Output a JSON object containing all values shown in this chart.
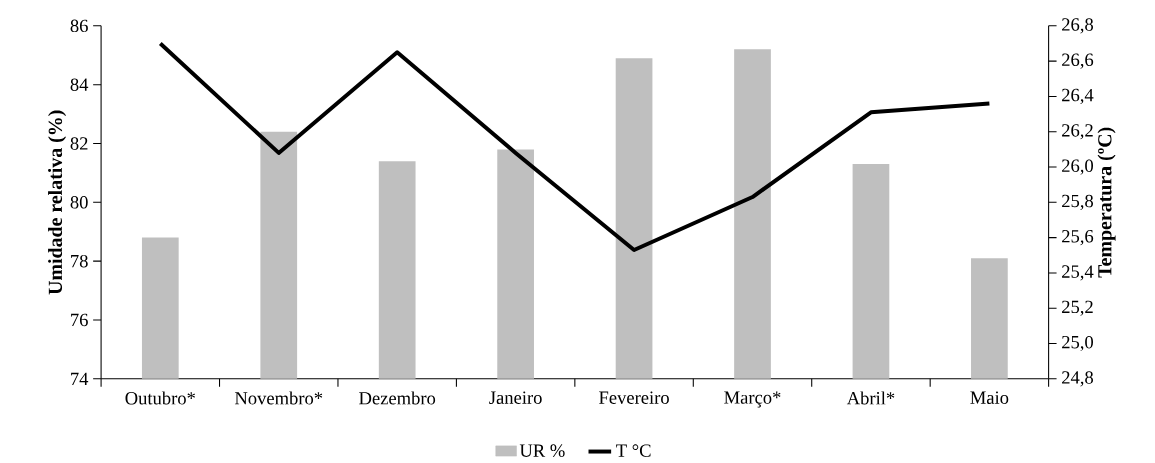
{
  "chart_data": {
    "type": "bar",
    "ylabel": "Umidade relativa (%)",
    "y2label": "Temperatura (ºC)",
    "categories": [
      "Outubro*",
      "Novembro*",
      "Dezembro",
      "Janeiro",
      "Fevereiro",
      "Março*",
      "Abril*",
      "Maio"
    ],
    "series": [
      {
        "name": "UR %",
        "color": "#bfbfbf",
        "values": [
          78.8,
          82.4,
          81.4,
          81.8,
          84.9,
          85.2,
          81.3,
          78.1
        ]
      },
      {
        "name": "T °C",
        "type": "line",
        "axis": "y2",
        "color": "#000000",
        "values": [
          26.7,
          26.08,
          26.65,
          26.08,
          25.53,
          25.83,
          26.31,
          26.36
        ]
      }
    ],
    "ylim": [
      74,
      86
    ],
    "yticks": [
      74,
      76,
      78,
      80,
      82,
      84,
      86
    ],
    "y2lim": [
      24.8,
      26.8
    ],
    "y2ticks": [
      {
        "value": 24.8,
        "label": "24,8"
      },
      {
        "value": 25.0,
        "label": "25,0"
      },
      {
        "value": 25.2,
        "label": "25,2"
      },
      {
        "value": 25.4,
        "label": "25,4"
      },
      {
        "value": 25.6,
        "label": "25,6"
      },
      {
        "value": 25.8,
        "label": "25,8"
      },
      {
        "value": 26.0,
        "label": "26,0"
      },
      {
        "value": 26.2,
        "label": "26,2"
      },
      {
        "value": 26.4,
        "label": "26,4"
      },
      {
        "value": 26.6,
        "label": "26,6"
      },
      {
        "value": 26.8,
        "label": "26,8"
      }
    ],
    "legend": "bottom",
    "grid": false,
    "marker": "none",
    "line_style": "solid"
  }
}
